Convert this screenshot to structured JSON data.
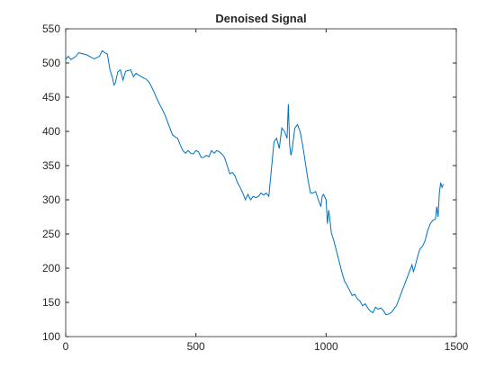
{
  "chart_data": {
    "type": "line",
    "title": "Denoised Signal",
    "x": [
      0,
      10,
      20,
      40,
      50,
      80,
      100,
      110,
      130,
      140,
      150,
      160,
      170,
      180,
      185,
      190,
      200,
      210,
      220,
      230,
      250,
      260,
      270,
      290,
      310,
      320,
      330,
      340,
      350,
      360,
      370,
      380,
      390,
      400,
      410,
      420,
      430,
      440,
      450,
      460,
      470,
      480,
      490,
      500,
      510,
      520,
      530,
      540,
      550,
      560,
      570,
      580,
      590,
      600,
      610,
      620,
      630,
      640,
      650,
      660,
      670,
      680,
      690,
      700,
      710,
      720,
      730,
      740,
      750,
      760,
      770,
      780,
      790,
      800,
      810,
      820,
      830,
      840,
      850,
      855,
      860,
      865,
      870,
      880,
      890,
      900,
      910,
      920,
      930,
      940,
      950,
      960,
      970,
      980,
      985,
      990,
      1000,
      1005,
      1010,
      1015,
      1020,
      1030,
      1040,
      1050,
      1060,
      1070,
      1080,
      1090,
      1100,
      1110,
      1120,
      1130,
      1140,
      1150,
      1160,
      1170,
      1180,
      1190,
      1200,
      1210,
      1220,
      1230,
      1240,
      1250,
      1260,
      1270,
      1280,
      1290,
      1300,
      1310,
      1320,
      1330,
      1335,
      1340,
      1350,
      1360,
      1370,
      1380,
      1390,
      1400,
      1410,
      1420,
      1425,
      1430,
      1435,
      1440,
      1445,
      1450
    ],
    "series": [
      {
        "color": "#0072bd",
        "values": [
          505,
          510,
          505,
          510,
          515,
          512,
          508,
          506,
          510,
          518,
          515,
          513,
          490,
          478,
          468,
          470,
          487,
          490,
          475,
          488,
          490,
          480,
          485,
          480,
          476,
          472,
          465,
          457,
          448,
          440,
          433,
          425,
          415,
          405,
          395,
          392,
          390,
          380,
          372,
          368,
          372,
          368,
          367,
          372,
          370,
          362,
          362,
          365,
          363,
          372,
          368,
          372,
          370,
          367,
          362,
          350,
          338,
          340,
          335,
          325,
          318,
          310,
          300,
          308,
          300,
          305,
          303,
          305,
          310,
          307,
          310,
          305,
          345,
          385,
          390,
          375,
          405,
          400,
          390,
          440,
          380,
          365,
          375,
          405,
          410,
          400,
          380,
          355,
          330,
          310,
          310,
          312,
          300,
          290,
          305,
          308,
          300,
          265,
          285,
          270,
          252,
          240,
          225,
          210,
          195,
          182,
          175,
          168,
          160,
          162,
          155,
          152,
          145,
          148,
          142,
          137,
          135,
          143,
          140,
          142,
          138,
          132,
          133,
          135,
          140,
          145,
          155,
          165,
          175,
          185,
          195,
          205,
          195,
          200,
          215,
          228,
          232,
          240,
          255,
          265,
          270,
          272,
          290,
          275,
          310,
          325,
          318,
          323
        ]
      }
    ],
    "xlim": [
      0,
      1500
    ],
    "xticks": [
      0,
      500,
      1000,
      1500
    ],
    "ylim": [
      100,
      550
    ],
    "yticks": [
      100,
      150,
      200,
      250,
      300,
      350,
      400,
      450,
      500,
      550
    ]
  }
}
